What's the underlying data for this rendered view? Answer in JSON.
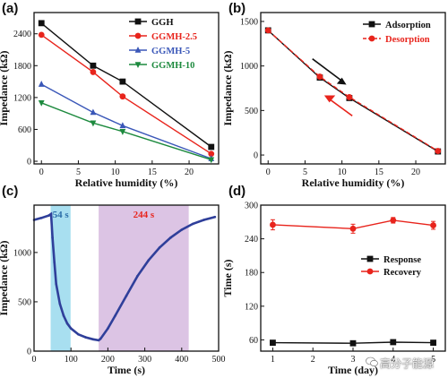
{
  "colors": {
    "black": "#111111",
    "red": "#e8241c",
    "blue": "#3a57b8",
    "green": "#1d8a3e",
    "navy": "#2f3f9a",
    "cyan_region": "#a8dff0",
    "purple_region": "#dcc4e4",
    "region_label_blue": "#2b6ea8",
    "region_label_red": "#e8241c"
  },
  "watermark": {
    "text": "高分子能源",
    "icon": "wechat-icon"
  },
  "chart_data": [
    {
      "panel": "(a)",
      "type": "line",
      "xlabel": "Relative humidity (%)",
      "ylabel": "Impedance (kΩ)",
      "xlim": [
        -1,
        24
      ],
      "ylim": [
        -50,
        2800
      ],
      "xticks": [
        0,
        5,
        10,
        15,
        20
      ],
      "yticks": [
        0,
        600,
        1200,
        1800,
        2400
      ],
      "legend_position": "top-right",
      "series": [
        {
          "name": "GGH",
          "color": "#111111",
          "marker": "square",
          "x": [
            0,
            7,
            11,
            23
          ],
          "y": [
            2600,
            1800,
            1500,
            270
          ]
        },
        {
          "name": "GGMH-2.5",
          "color": "#e8241c",
          "marker": "circle",
          "x": [
            0,
            7,
            11,
            23
          ],
          "y": [
            2380,
            1680,
            1220,
            140
          ]
        },
        {
          "name": "GGMH-5",
          "color": "#3a57b8",
          "marker": "triangle",
          "x": [
            0,
            7,
            11,
            23
          ],
          "y": [
            1450,
            920,
            670,
            50
          ]
        },
        {
          "name": "GGMH-10",
          "color": "#1d8a3e",
          "marker": "triangle-down",
          "x": [
            0,
            7,
            11,
            23
          ],
          "y": [
            1100,
            720,
            560,
            30
          ]
        }
      ]
    },
    {
      "panel": "(b)",
      "type": "line",
      "xlabel": "Relative humidity (%)",
      "ylabel": "Impedance (kΩ)",
      "xlim": [
        -1,
        24
      ],
      "ylim": [
        -100,
        1600
      ],
      "xticks": [
        0,
        5,
        10,
        15,
        20
      ],
      "yticks": [
        0,
        500,
        1000,
        1500
      ],
      "legend_position": "top-right",
      "series": [
        {
          "name": "Adsorption",
          "color": "#111111",
          "marker": "square",
          "x": [
            0,
            7,
            11,
            23
          ],
          "y": [
            1400,
            870,
            640,
            40
          ]
        },
        {
          "name": "Desorption",
          "color": "#e8241c",
          "marker": "circle",
          "dashed": true,
          "x": [
            0,
            7,
            11,
            23
          ],
          "y": [
            1400,
            880,
            650,
            45
          ]
        }
      ]
    },
    {
      "panel": "(c)",
      "type": "line",
      "xlabel": "Time (s)",
      "ylabel": "Impedance (kΩ)",
      "xlim": [
        0,
        500
      ],
      "ylim": [
        0,
        1480
      ],
      "xticks": [
        0,
        100,
        200,
        300,
        400,
        500
      ],
      "yticks": [
        0,
        500,
        1000
      ],
      "shaded_regions": [
        {
          "label": "54 s",
          "x0": 45,
          "x1": 99,
          "color": "#a8dff0",
          "label_color": "#2b6ea8"
        },
        {
          "label": "244 s",
          "x0": 175,
          "x1": 419,
          "color": "#dcc4e4",
          "label_color": "#e8241c"
        }
      ],
      "series": [
        {
          "name": "",
          "color": "#2f3f9a",
          "x": [
            0,
            20,
            40,
            46,
            50,
            55,
            60,
            70,
            80,
            90,
            100,
            120,
            140,
            160,
            175,
            180,
            200,
            220,
            250,
            280,
            310,
            340,
            370,
            400,
            430,
            460,
            490
          ],
          "y": [
            1330,
            1350,
            1375,
            1390,
            1150,
            900,
            680,
            480,
            360,
            280,
            230,
            170,
            140,
            120,
            110,
            125,
            230,
            360,
            560,
            760,
            920,
            1050,
            1150,
            1230,
            1290,
            1330,
            1360
          ]
        }
      ]
    },
    {
      "panel": "(d)",
      "type": "line",
      "xlabel": "Time (day)",
      "ylabel": "Time (s)",
      "xlim": [
        0.7,
        5.3
      ],
      "ylim": [
        40,
        300
      ],
      "xticks": [
        1,
        2,
        3,
        4,
        5
      ],
      "yticks": [
        60,
        120,
        180,
        240,
        300
      ],
      "legend_position": "center-right",
      "series": [
        {
          "name": "Response",
          "color": "#111111",
          "marker": "square",
          "x": [
            1,
            3,
            4,
            5
          ],
          "y": [
            55,
            54,
            56,
            55
          ],
          "err": [
            2,
            2,
            2,
            2
          ]
        },
        {
          "name": "Recovery",
          "color": "#e8241c",
          "marker": "circle",
          "x": [
            1,
            3,
            4,
            5
          ],
          "y": [
            265,
            258,
            273,
            264
          ],
          "err": [
            9,
            8,
            5,
            7
          ]
        }
      ]
    }
  ]
}
